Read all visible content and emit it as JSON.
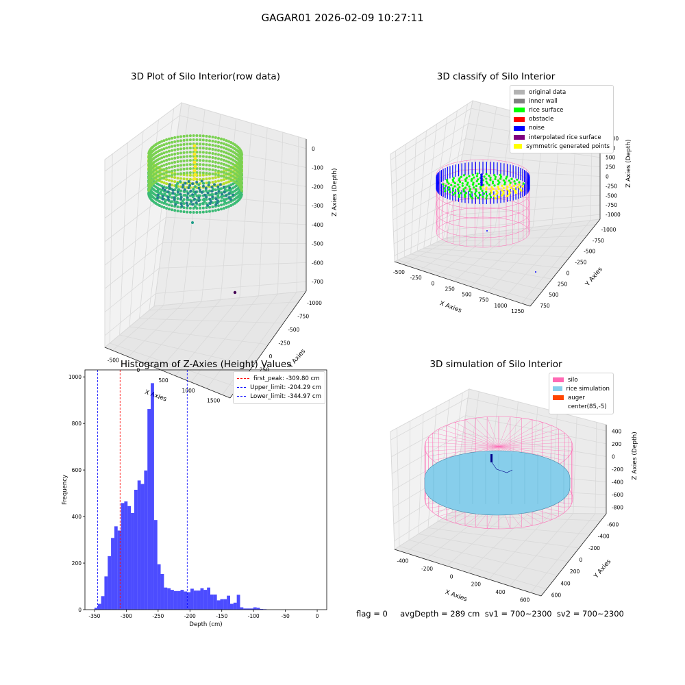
{
  "suptitle": "GAGAR01 2026-02-09 10:27:11",
  "footer": "flag = 0     avgDepth = 289 cm  sv1 = 700~2300  sv2 = 700~2300",
  "panels": {
    "raw": {
      "title": "3D Plot of Silo Interior(row data)",
      "xlabel": "X Axies",
      "ylabel": "Y Axies",
      "zlabel": "Z Axies (Depth)",
      "xticks": [
        "-500",
        "0",
        "500",
        "1000",
        "1500"
      ],
      "yticks": [
        "750",
        "500",
        "250",
        "0",
        "-250",
        "-500",
        "-750",
        "-1000"
      ],
      "zticks": [
        "0",
        "-100",
        "-200",
        "-300",
        "-400",
        "-500",
        "-600",
        "-700"
      ]
    },
    "classify": {
      "title": "3D classify of Silo Interior",
      "xlabel": "X Axies",
      "ylabel": "Y Axies",
      "zlabel": "Z Axies (Depth)",
      "xticks": [
        "-500",
        "-250",
        "0",
        "250",
        "500",
        "750",
        "1000",
        "1250"
      ],
      "yticks": [
        "750",
        "500",
        "250",
        "0",
        "-250",
        "-500",
        "-750",
        "-1000"
      ],
      "zticks": [
        "1000",
        "750",
        "500",
        "250",
        "0",
        "-250",
        "-500",
        "-750",
        "-1000"
      ],
      "legend": [
        {
          "label": "original data",
          "color": "#b3b3b3"
        },
        {
          "label": "inner wall",
          "color": "#808080"
        },
        {
          "label": "rice surface",
          "color": "#00ff00"
        },
        {
          "label": "obstacle",
          "color": "#ff0000"
        },
        {
          "label": "noise",
          "color": "#0000ff"
        },
        {
          "label": "interpolated rice surface",
          "color": "#800080"
        },
        {
          "label": "symmetric generated points",
          "color": "#ffff00"
        }
      ]
    },
    "simulation": {
      "title": "3D simulation of Silo Interior",
      "xlabel": "X Axies",
      "ylabel": "Y Axies",
      "zlabel": "Z Axies (Depth)",
      "xticks": [
        "-400",
        "-200",
        "0",
        "200",
        "400",
        "600"
      ],
      "yticks": [
        "600",
        "400",
        "200",
        "0",
        "-200",
        "-400",
        "-600"
      ],
      "zticks": [
        "400",
        "200",
        "0",
        "-200",
        "-400",
        "-600",
        "-800"
      ],
      "legend": [
        {
          "label": "silo",
          "color": "#ff69b4"
        },
        {
          "label": "rice simulation",
          "color": "#87ceeb"
        },
        {
          "label": "auger",
          "color": "#ff4500"
        },
        {
          "label": "center(85,-5)",
          "color": "#ffffff"
        }
      ]
    }
  },
  "chart_data": {
    "type": "bar",
    "title": "Histogram of Z-Axies (Height) Values",
    "xlabel": "Depth (cm)",
    "ylabel": "Frequency",
    "xlim": [
      -365,
      15
    ],
    "ylim": [
      0,
      1030
    ],
    "xticks": [
      -350,
      -300,
      -250,
      -200,
      -150,
      -100,
      -50,
      0
    ],
    "yticks": [
      0,
      200,
      400,
      600,
      800,
      1000
    ],
    "bar_color": "#0000ff",
    "bin_edges_start": -350,
    "bin_width": 5.2,
    "values": [
      8,
      25,
      58,
      143,
      230,
      308,
      358,
      340,
      458,
      465,
      445,
      415,
      515,
      555,
      540,
      598,
      862,
      973,
      385,
      195,
      153,
      95,
      92,
      85,
      80,
      80,
      85,
      78,
      75,
      90,
      82,
      82,
      92,
      85,
      95,
      65,
      65,
      40,
      45,
      45,
      60,
      25,
      30,
      64,
      10,
      5,
      5,
      5,
      10,
      8,
      3,
      2
    ],
    "vlines": [
      {
        "label": "first_peak: -309.80 cm",
        "x": -309.8,
        "color": "#ff0000"
      },
      {
        "label": "Upper_limit: -204.29 cm",
        "x": -204.29,
        "color": "#0000ff"
      },
      {
        "label": "Lower_limit: -344.97 cm",
        "x": -344.97,
        "color": "#0000ff"
      }
    ]
  }
}
